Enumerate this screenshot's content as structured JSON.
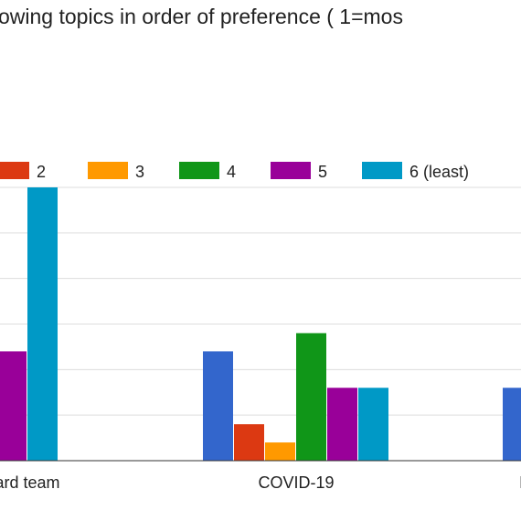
{
  "chart_data": {
    "type": "bar",
    "title": "owing topics in order of preference ( 1=mos",
    "categories": [
      "ard team",
      "COVID-19",
      "I"
    ],
    "series": [
      {
        "name": "2",
        "color": "#dc3912",
        "values": [
          0,
          2,
          0
        ]
      },
      {
        "name": "3",
        "color": "#ff9900",
        "values": [
          0,
          1,
          0
        ]
      },
      {
        "name": "4",
        "color": "#109618",
        "values": [
          0,
          7,
          0
        ]
      },
      {
        "name": "5",
        "color": "#990099",
        "values": [
          6,
          4,
          0
        ]
      },
      {
        "name": "6 (least)",
        "color": "#0099c6",
        "values": [
          15,
          4,
          0
        ]
      }
    ],
    "partial_series": {
      "color": "#3366cc",
      "values": [
        0,
        6,
        4
      ]
    },
    "ylim": [
      0,
      15
    ],
    "gridlines": [
      0,
      2.5,
      5,
      7.5,
      10,
      12.5,
      15
    ],
    "grid": true,
    "legend_position": "top"
  }
}
